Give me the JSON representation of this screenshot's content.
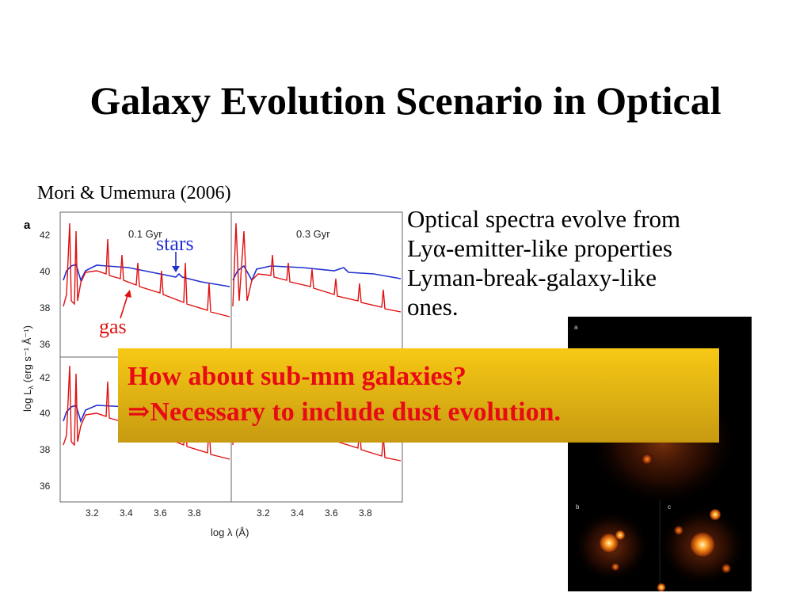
{
  "slide": {
    "title": "Galaxy Evolution Scenario in Optical",
    "citation": "Mori & Umemura (2006)"
  },
  "figure": {
    "panel_letter": "a",
    "panels": [
      "0.1 Gyr",
      "0.3 Gyr"
    ],
    "y_ticks": [
      "42",
      "40",
      "38",
      "36"
    ],
    "x_ticks": [
      "3.2",
      "3.4",
      "3.6",
      "3.8"
    ],
    "x_label": "log λ (Å)",
    "y_label": "log L",
    "y_label_sub": "λ",
    "y_label_units": "(erg s⁻¹ Å⁻¹)",
    "stars_label": "stars",
    "gas_label": "gas",
    "colors": {
      "stars": "#2230d0",
      "gas": "#e01010"
    }
  },
  "body_text": {
    "line1": "Optical spectra evolve from",
    "line2_prefix": "Ly",
    "line2_alpha": "α",
    "line2_suffix": "-emitter-like properties",
    "line3": "Lyman-break-galaxy-like",
    "line4": "ones."
  },
  "callout": {
    "line1": "How about sub-mm galaxies?",
    "arrow": "⇒",
    "line2": "Necessary to include dust evolution."
  },
  "simulation": {
    "labels": [
      "a",
      "b",
      "c"
    ]
  }
}
